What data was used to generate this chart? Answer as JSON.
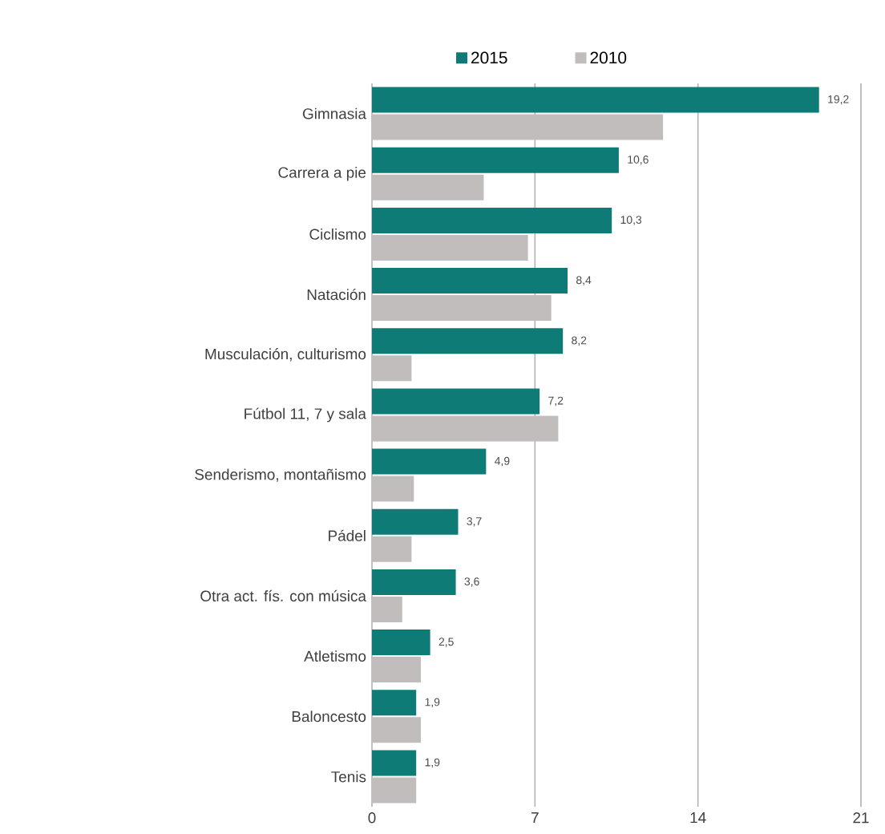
{
  "chart_data": {
    "type": "bar",
    "orientation": "horizontal",
    "categories": [
      "Gimnasia",
      "Carrera a pie",
      "Ciclismo",
      "Natación",
      "Musculación, culturismo",
      "Fútbol 11, 7  y sala",
      "Senderismo, montañismo",
      "Pádel",
      "Otra act. fís. con música",
      "Atletismo",
      "Baloncesto",
      "Tenis"
    ],
    "series": [
      {
        "name": "2015",
        "color": "#0f7b76",
        "values": [
          19.2,
          10.6,
          10.3,
          8.4,
          8.2,
          7.2,
          4.9,
          3.7,
          3.6,
          2.5,
          1.9,
          1.9
        ],
        "value_labels": [
          "19,2",
          "10,6",
          "10,3",
          "8,4",
          "8,2",
          "7,2",
          "4,9",
          "3,7",
          "3,6",
          "2,5",
          "1,9",
          "1,9"
        ]
      },
      {
        "name": "2010",
        "color": "#c1bdbd",
        "values": [
          12.5,
          4.8,
          6.7,
          7.7,
          1.7,
          8.0,
          1.8,
          1.7,
          1.3,
          2.1,
          2.1,
          1.9
        ]
      }
    ],
    "xlim": [
      0,
      21
    ],
    "xticks": [
      0,
      7,
      14,
      21
    ],
    "grid": "x",
    "legend": "top"
  }
}
